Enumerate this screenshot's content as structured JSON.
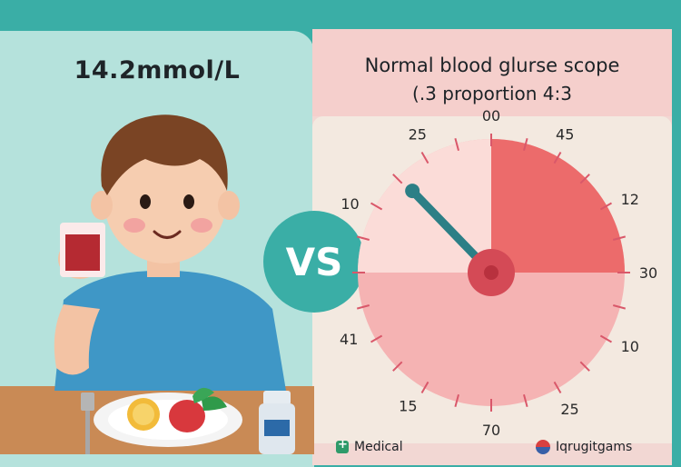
{
  "left": {
    "title": "14.2mmol/L"
  },
  "center": {
    "vs_label": "VS"
  },
  "right": {
    "title": "Normal blood glurse scope",
    "subtitle": "(.3 proportion 4:3"
  },
  "gauge": {
    "labels": [
      "00",
      "45",
      "12",
      "30",
      "10",
      "25",
      "70",
      "15",
      "41",
      "10",
      "25"
    ]
  },
  "footer": {
    "left_label": "Medical",
    "right_label": "Iqrugitgams"
  },
  "colors": {
    "background": "#3aaea6",
    "left_panel": "#b5e2dc",
    "right_panel": "#f2d7d3",
    "gauge_red": "#ec6b6b",
    "gauge_light": "#f5b3b3",
    "needle": "#2c7f86"
  }
}
